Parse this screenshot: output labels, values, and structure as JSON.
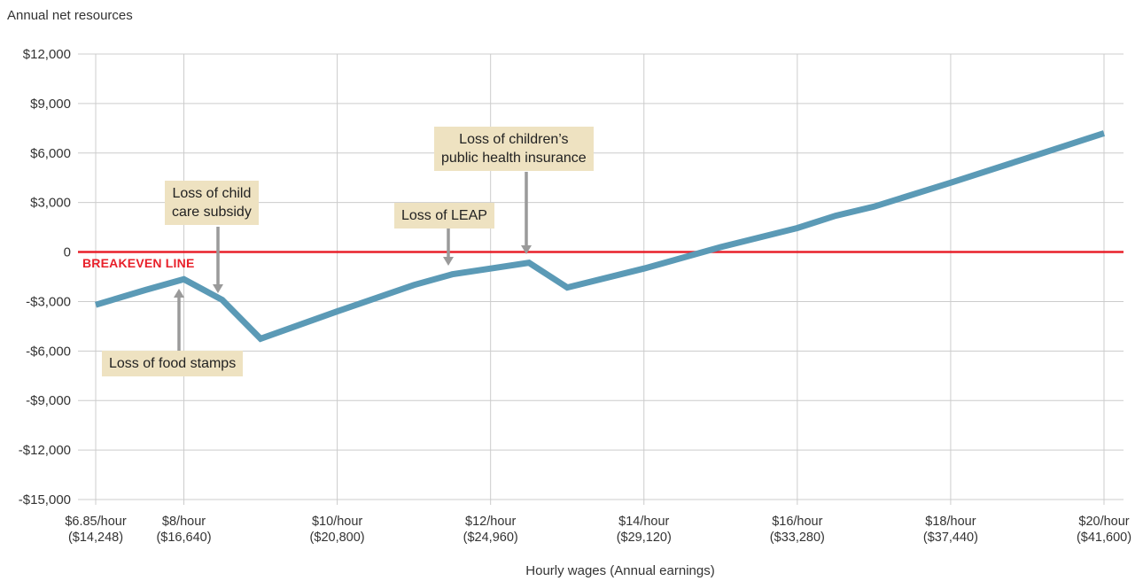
{
  "chart_data": {
    "type": "line",
    "ylabel": "Annual net resources",
    "xlabel": "Hourly wages (Annual earnings)",
    "xlim": [
      6.85,
      20
    ],
    "ylim": [
      -15000,
      12000
    ],
    "yticks": [
      {
        "value": 12000,
        "label": "$12,000"
      },
      {
        "value": 9000,
        "label": "$9,000"
      },
      {
        "value": 6000,
        "label": "$6,000"
      },
      {
        "value": 3000,
        "label": "$3,000"
      },
      {
        "value": 0,
        "label": "0"
      },
      {
        "value": -3000,
        "label": "-$3,000"
      },
      {
        "value": -6000,
        "label": "-$6,000"
      },
      {
        "value": -9000,
        "label": "-$9,000"
      },
      {
        "value": -12000,
        "label": "-$12,000"
      },
      {
        "value": -15000,
        "label": "-$15,000"
      }
    ],
    "xticks": [
      {
        "value": 6.85,
        "line1": "$6.85/hour",
        "line2": "($14,248)"
      },
      {
        "value": 8,
        "line1": "$8/hour",
        "line2": "($16,640)"
      },
      {
        "value": 10,
        "line1": "$10/hour",
        "line2": "($20,800)"
      },
      {
        "value": 12,
        "line1": "$12/hour",
        "line2": "($24,960)"
      },
      {
        "value": 14,
        "line1": "$14/hour",
        "line2": "($29,120)"
      },
      {
        "value": 16,
        "line1": "$16/hour",
        "line2": "($33,280)"
      },
      {
        "value": 18,
        "line1": "$18/hour",
        "line2": "($37,440)"
      },
      {
        "value": 20,
        "line1": "$20/hour",
        "line2": "($41,600)"
      }
    ],
    "series": [
      {
        "x": [
          6.85,
          7.5,
          8,
          8.5,
          9,
          10,
          11,
          11.5,
          12,
          12.5,
          13,
          14,
          15,
          16,
          16.5,
          17,
          18,
          19,
          20
        ],
        "y": [
          -3200,
          -2300,
          -1650,
          -2900,
          -5250,
          -3600,
          -2000,
          -1350,
          -1000,
          -650,
          -2150,
          -1000,
          300,
          1450,
          2200,
          2750,
          4200,
          5700,
          7200
        ]
      }
    ],
    "reference_line": {
      "value": 0,
      "label": "BREAKEVEN LINE"
    },
    "annotations": [
      {
        "text": "Loss of food stamps",
        "x": 8,
        "y": -1650
      },
      {
        "text": "Loss of child care subsidy",
        "x": 8.5,
        "y": -2400
      },
      {
        "text": "Loss of LEAP",
        "x": 11.7,
        "y": -850
      },
      {
        "text": "Loss of children’s public health insurance",
        "x": 12.5,
        "y": -200
      }
    ],
    "colors": {
      "line": "#5b9ab6",
      "breakeven": "#e8202a",
      "grid": "#cccccc",
      "arrow": "#9a9a9a",
      "annotation_bg": "#eee2c1"
    },
    "grid": true
  },
  "labels": {
    "breakeven": "BREAKEVEN LINE",
    "food_stamps": "Loss of food stamps",
    "child_care_1": "Loss of child",
    "child_care_2": "care subsidy",
    "leap": "Loss of LEAP",
    "health_1": "Loss of children’s",
    "health_2": "public health insurance"
  }
}
